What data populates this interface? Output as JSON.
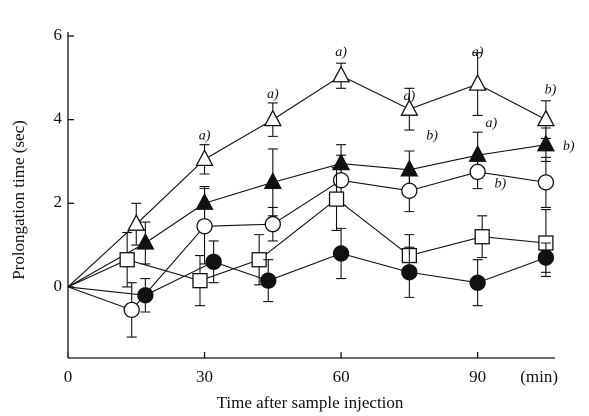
{
  "chart_data": {
    "type": "line",
    "xlabel": "Time after sample injection",
    "ylabel": "Prolongation time (sec)",
    "xunit": "(min)",
    "xlim": [
      0,
      107
    ],
    "xticks": [
      0,
      30,
      60,
      90
    ],
    "ylim": [
      -1.7,
      6
    ],
    "yticks": [
      0,
      2,
      4,
      6
    ],
    "grid": false,
    "series": [
      {
        "marker": "triangle-open",
        "color": "#111",
        "x": [
          0,
          15,
          30,
          45,
          60,
          75,
          90,
          105
        ],
        "values": [
          0,
          1.5,
          3.05,
          4.0,
          5.05,
          4.25,
          4.85,
          4.0
        ],
        "errors": [
          0,
          0.5,
          0.35,
          0.4,
          0.3,
          0.5,
          0.75,
          0.45
        ]
      },
      {
        "marker": "triangle-filled",
        "color": "#111",
        "x": [
          0,
          17,
          30,
          45,
          60,
          75,
          90,
          105
        ],
        "values": [
          0,
          1.05,
          2.0,
          2.5,
          2.95,
          2.8,
          3.15,
          3.4
        ],
        "errors": [
          0,
          0.5,
          0.4,
          0.8,
          0.45,
          0.45,
          0.55,
          0.4
        ]
      },
      {
        "marker": "circle-open",
        "color": "#111",
        "x": [
          0,
          14,
          30,
          45,
          60,
          75,
          90,
          105
        ],
        "values": [
          0,
          -0.55,
          1.45,
          1.5,
          2.55,
          2.3,
          2.75,
          2.5
        ],
        "errors": [
          0,
          0.65,
          0.9,
          0.4,
          0.6,
          0.5,
          0.4,
          0.6
        ]
      },
      {
        "marker": "square-open",
        "color": "#111",
        "x": [
          0,
          13,
          29,
          42,
          59,
          75,
          91,
          105
        ],
        "values": [
          0,
          0.65,
          0.15,
          0.65,
          2.1,
          0.75,
          1.2,
          1.05
        ],
        "errors": [
          0,
          0.65,
          0.6,
          0.6,
          0.75,
          0.5,
          0.5,
          0.8
        ]
      },
      {
        "marker": "circle-filled",
        "color": "#111",
        "x": [
          0,
          17,
          32,
          44,
          60,
          75,
          90,
          105
        ],
        "values": [
          0,
          -0.2,
          0.6,
          0.15,
          0.8,
          0.35,
          0.1,
          0.7
        ],
        "errors": [
          0,
          0.4,
          0.5,
          0.5,
          0.6,
          0.6,
          0.55,
          0.35
        ]
      }
    ],
    "annotations": [
      {
        "text": "a)",
        "x": 30,
        "y": 3.6
      },
      {
        "text": "a)",
        "x": 45,
        "y": 4.6
      },
      {
        "text": "a)",
        "x": 60,
        "y": 5.6
      },
      {
        "text": "a)",
        "x": 75,
        "y": 4.55
      },
      {
        "text": "a)",
        "x": 90,
        "y": 5.6
      },
      {
        "text": "b)",
        "x": 106,
        "y": 4.7
      },
      {
        "text": "b)",
        "x": 80,
        "y": 3.6
      },
      {
        "text": "a)",
        "x": 93,
        "y": 3.9
      },
      {
        "text": "b)",
        "x": 110,
        "y": 3.35
      },
      {
        "text": "b)",
        "x": 95,
        "y": 2.45
      }
    ]
  }
}
